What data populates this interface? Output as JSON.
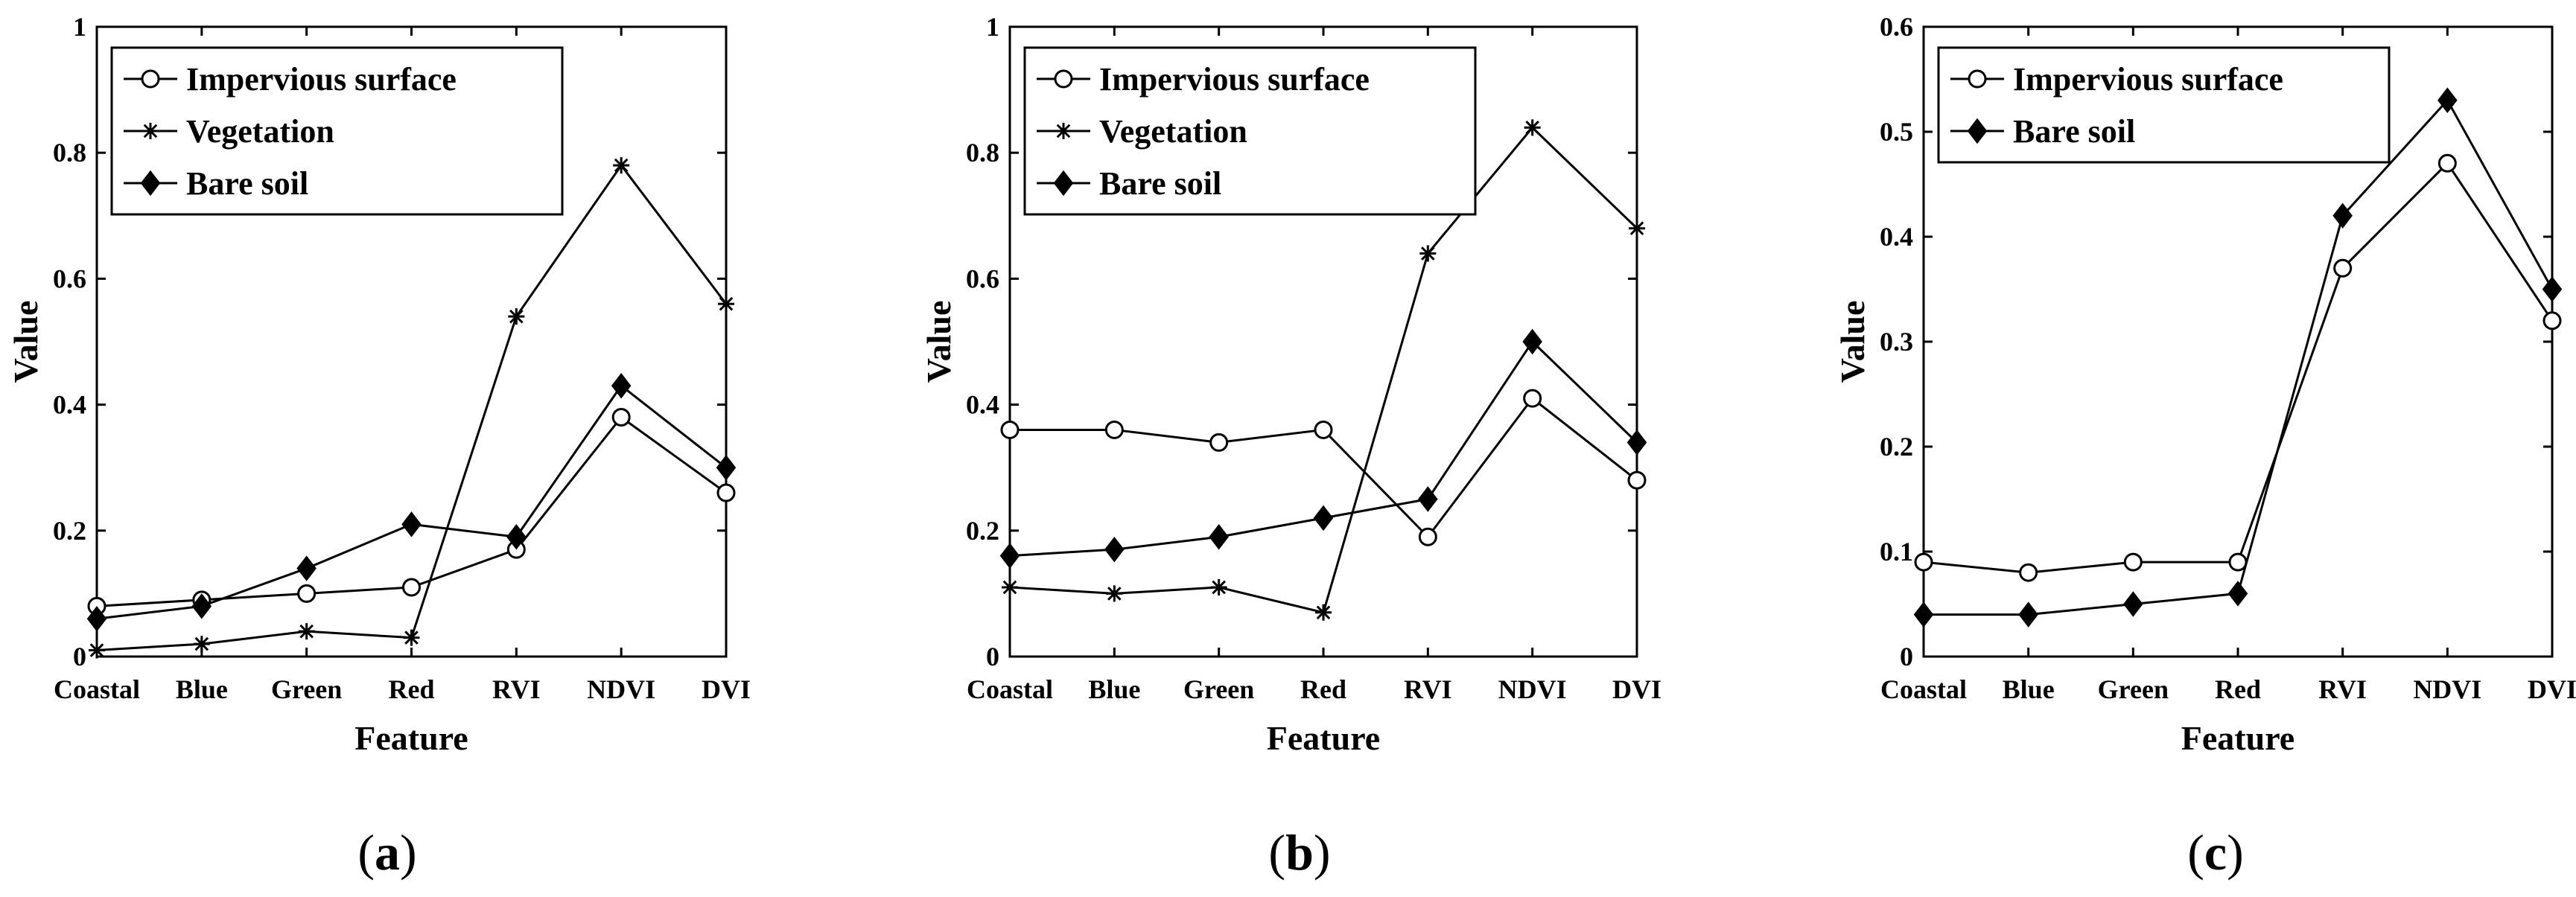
{
  "chart_data": [
    {
      "type": "line",
      "panel_label": "a",
      "xlabel": "Feature",
      "ylabel": "Value",
      "ylim": [
        0,
        1
      ],
      "yticks": [
        "0",
        "0.2",
        "0.4",
        "0.6",
        "0.8",
        "1"
      ],
      "yticks_values": [
        0,
        0.2,
        0.4,
        0.6,
        0.8,
        1
      ],
      "categories": [
        "Coastal",
        "Blue",
        "Green",
        "Red",
        "RVI",
        "NDVI",
        "DVI"
      ],
      "legend_position": "top-left",
      "series": [
        {
          "name": "Impervious surface",
          "marker": "circle",
          "values": [
            0.08,
            0.09,
            0.1,
            0.11,
            0.17,
            0.38,
            0.26
          ]
        },
        {
          "name": "Vegetation",
          "marker": "asterisk",
          "values": [
            0.01,
            0.02,
            0.04,
            0.03,
            0.54,
            0.78,
            0.56
          ]
        },
        {
          "name": "Bare soil",
          "marker": "diamond",
          "values": [
            0.06,
            0.08,
            0.14,
            0.21,
            0.19,
            0.43,
            0.3
          ]
        }
      ]
    },
    {
      "type": "line",
      "panel_label": "b",
      "xlabel": "Feature",
      "ylabel": "Value",
      "ylim": [
        0,
        1
      ],
      "yticks": [
        "0",
        "0.2",
        "0.4",
        "0.6",
        "0.8",
        "1"
      ],
      "yticks_values": [
        0,
        0.2,
        0.4,
        0.6,
        0.8,
        1
      ],
      "categories": [
        "Coastal",
        "Blue",
        "Green",
        "Red",
        "RVI",
        "NDVI",
        "DVI"
      ],
      "legend_position": "top-left",
      "series": [
        {
          "name": "Impervious surface",
          "marker": "circle",
          "values": [
            0.36,
            0.36,
            0.34,
            0.36,
            0.19,
            0.41,
            0.28
          ]
        },
        {
          "name": "Vegetation",
          "marker": "asterisk",
          "values": [
            0.11,
            0.1,
            0.11,
            0.07,
            0.64,
            0.84,
            0.68
          ]
        },
        {
          "name": "Bare soil",
          "marker": "diamond",
          "values": [
            0.16,
            0.17,
            0.19,
            0.22,
            0.25,
            0.5,
            0.34
          ]
        }
      ]
    },
    {
      "type": "line",
      "panel_label": "c",
      "xlabel": "Feature",
      "ylabel": "Value",
      "ylim": [
        0,
        0.6
      ],
      "yticks": [
        "0",
        "0.1",
        "0.2",
        "0.3",
        "0.4",
        "0.5",
        "0.6"
      ],
      "yticks_values": [
        0,
        0.1,
        0.2,
        0.3,
        0.4,
        0.5,
        0.6
      ],
      "categories": [
        "Coastal",
        "Blue",
        "Green",
        "Red",
        "RVI",
        "NDVI",
        "DVI"
      ],
      "legend_position": "top-left",
      "series": [
        {
          "name": "Impervious surface",
          "marker": "circle",
          "values": [
            0.09,
            0.08,
            0.09,
            0.09,
            0.37,
            0.47,
            0.32
          ]
        },
        {
          "name": "Bare soil",
          "marker": "diamond",
          "values": [
            0.04,
            0.04,
            0.05,
            0.06,
            0.42,
            0.53,
            0.35
          ]
        }
      ]
    }
  ]
}
